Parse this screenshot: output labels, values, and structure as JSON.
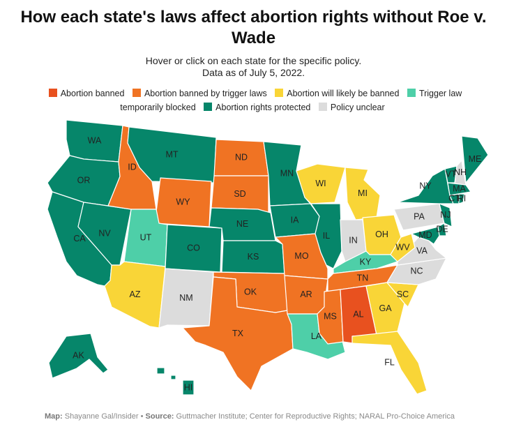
{
  "title": "How each state's laws affect abortion rights without Roe v. Wade",
  "subtitle_line1": "Hover or click on each state for the specific policy.",
  "subtitle_line2": "Data as of July 5, 2022.",
  "legend": [
    {
      "key": "banned",
      "label": "Abortion banned",
      "color": "#e8511f"
    },
    {
      "key": "trigger",
      "label": "Abortion banned by trigger laws",
      "color": "#f07323"
    },
    {
      "key": "likely",
      "label": "Abortion will likely be banned",
      "color": "#f9d537"
    },
    {
      "key": "blocked",
      "label": "Trigger law temporarily blocked",
      "color": "#4ecfa8"
    },
    {
      "key": "protected",
      "label": "Abortion rights protected",
      "color": "#06866a"
    },
    {
      "key": "unclear",
      "label": "Policy unclear",
      "color": "#dcdcdc"
    }
  ],
  "states": {
    "WA": "protected",
    "OR": "protected",
    "CA": "protected",
    "NV": "protected",
    "ID": "trigger",
    "MT": "protected",
    "WY": "trigger",
    "UT": "blocked",
    "CO": "protected",
    "AZ": "likely",
    "NM": "unclear",
    "ND": "trigger",
    "SD": "trigger",
    "NE": "protected",
    "KS": "protected",
    "OK": "trigger",
    "TX": "trigger",
    "MN": "protected",
    "IA": "protected",
    "MO": "trigger",
    "AR": "trigger",
    "LA": "blocked",
    "WI": "likely",
    "IL": "protected",
    "MS": "trigger",
    "MI": "likely",
    "IN": "unclear",
    "KY": "blocked",
    "TN": "trigger",
    "AL": "banned",
    "OH": "likely",
    "GA": "likely",
    "FL": "likely",
    "SC": "likely",
    "NC": "unclear",
    "VA": "unclear",
    "WV": "likely",
    "PA": "unclear",
    "NY": "protected",
    "VT": "protected",
    "NH": "unclear",
    "ME": "protected",
    "MA": "protected",
    "CT": "protected",
    "RI": "protected",
    "NJ": "protected",
    "DE": "protected",
    "MD": "protected",
    "AK": "protected",
    "HI": "protected"
  },
  "source_label": "Map:",
  "source_author": "Shayanne Gal/Insider",
  "source_sep": "•",
  "source_key": "Source:",
  "source_text": "Guttmacher Institute; Center for Reproductive Rights; NARAL Pro-Choice America"
}
